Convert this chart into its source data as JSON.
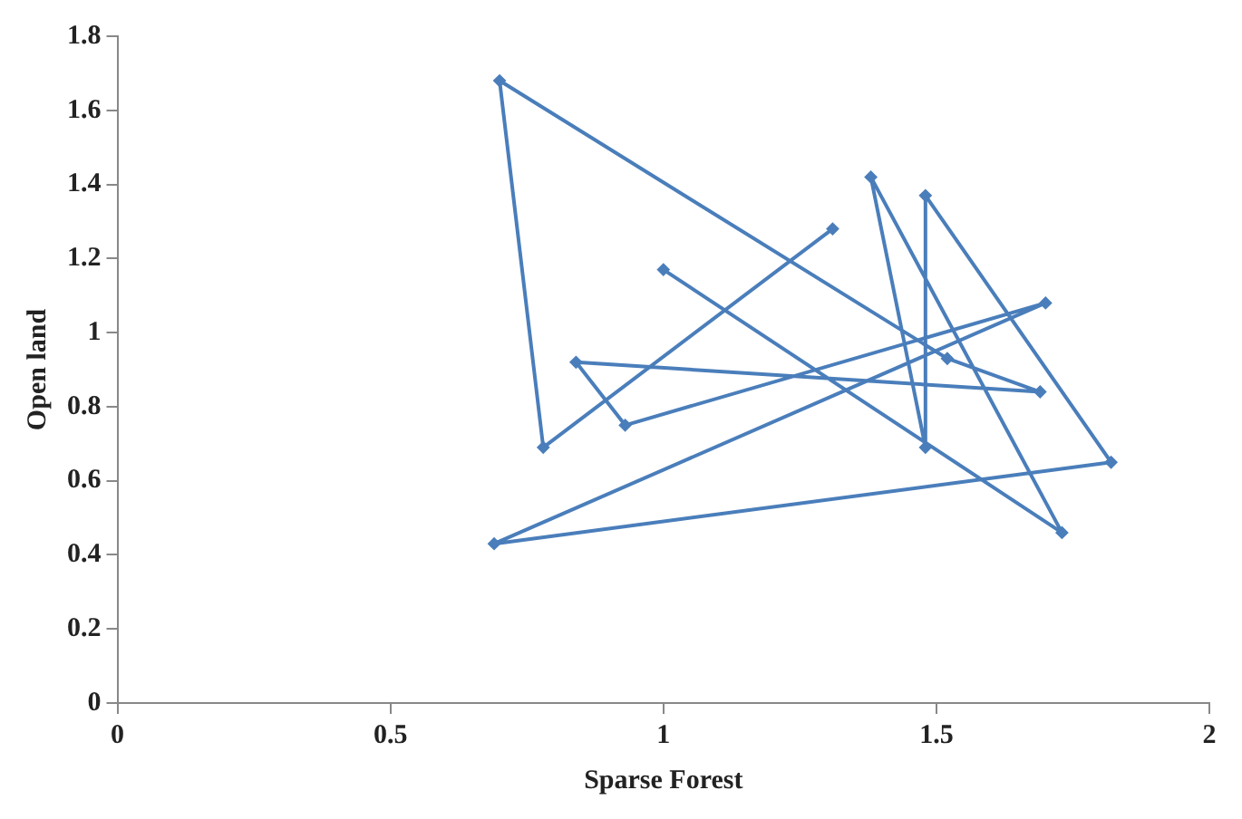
{
  "chart_data": {
    "type": "line",
    "xlabel": "Sparse Forest",
    "ylabel": "Open land",
    "x": [
      1.0,
      1.73,
      1.38,
      1.48,
      1.48,
      1.82,
      0.69,
      1.7,
      0.93,
      0.84,
      1.69,
      1.52,
      0.7,
      0.78,
      1.31
    ],
    "series": [
      {
        "color": "#4a7ebb",
        "values": [
          1.17,
          0.46,
          1.42,
          0.69,
          1.37,
          0.65,
          0.43,
          1.08,
          0.75,
          0.92,
          0.84,
          0.93,
          1.68,
          0.69,
          1.28
        ]
      }
    ],
    "xlim": [
      0,
      2
    ],
    "xticks": [
      0,
      0.5,
      1,
      1.5,
      2
    ],
    "ylim": [
      0,
      1.8
    ],
    "yticks": [
      0,
      0.2,
      0.4,
      0.6,
      0.8,
      1,
      1.2,
      1.4,
      1.6,
      1.8
    ],
    "grid": false,
    "legend": false,
    "marker": "diamond",
    "line_style": "solid"
  }
}
